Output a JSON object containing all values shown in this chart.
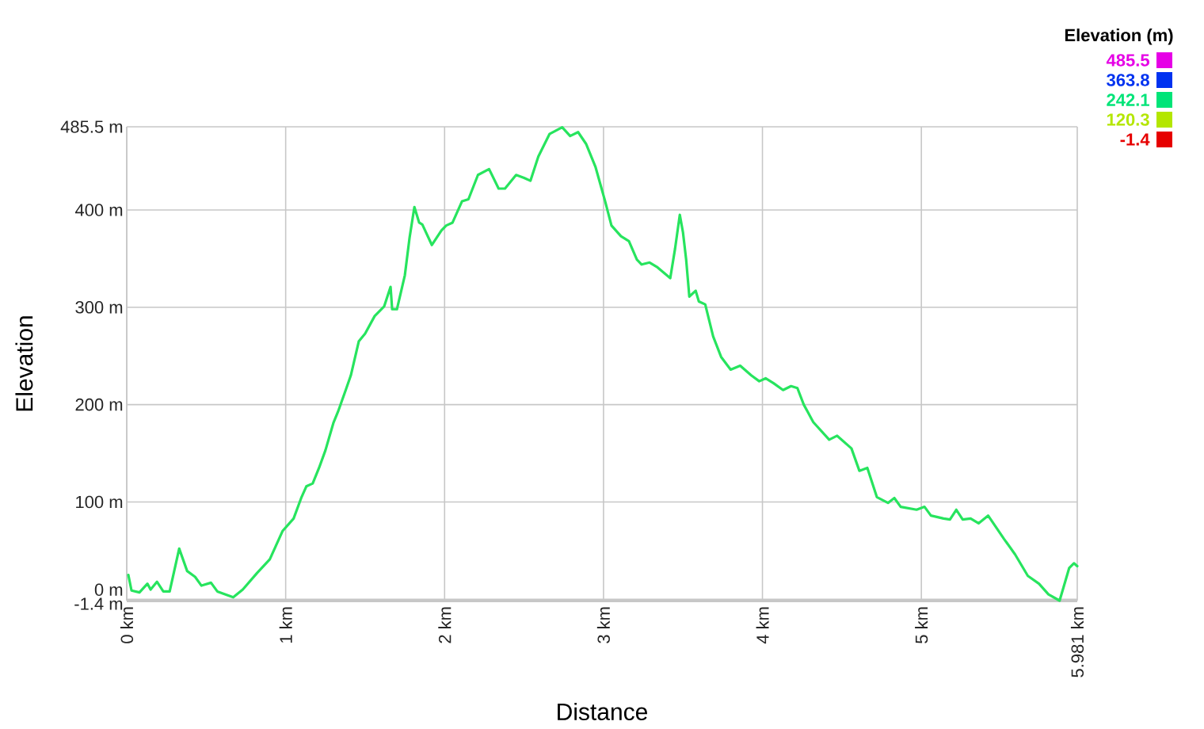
{
  "chart_data": {
    "type": "line",
    "xlabel": "Distance",
    "ylabel": "Elevation",
    "clabel": "Elevation (m)",
    "clim": [
      -1.4,
      485.5
    ],
    "cticks": [
      485.5,
      363.8,
      242.1,
      120.3,
      -1.4
    ],
    "xlim": [
      0,
      5.981
    ],
    "ylim": [
      -1.4,
      485.5
    ],
    "grid": true,
    "xticks": [
      {
        "value": 0,
        "label": "0 km"
      },
      {
        "value": 1,
        "label": "1 km"
      },
      {
        "value": 2,
        "label": "2 km"
      },
      {
        "value": 3,
        "label": "3 km"
      },
      {
        "value": 4,
        "label": "4 km"
      },
      {
        "value": 5,
        "label": "5 km"
      },
      {
        "value": 5.981,
        "label": "5.981 km"
      }
    ],
    "yticks": [
      {
        "value": -1.4,
        "label": "-1.4 m"
      },
      {
        "value": 0,
        "label": "0 m"
      },
      {
        "value": 100,
        "label": "100 m"
      },
      {
        "value": 200,
        "label": "200 m"
      },
      {
        "value": 300,
        "label": "300 m"
      },
      {
        "value": 400,
        "label": "400 m"
      },
      {
        "value": 485.5,
        "label": "485.5 m"
      }
    ],
    "x": [
      0.01,
      0.03,
      0.08,
      0.13,
      0.15,
      0.19,
      0.23,
      0.27,
      0.33,
      0.38,
      0.43,
      0.47,
      0.53,
      0.57,
      0.67,
      0.73,
      0.82,
      0.9,
      0.98,
      1.05,
      1.1,
      1.13,
      1.17,
      1.21,
      1.25,
      1.3,
      1.33,
      1.38,
      1.41,
      1.46,
      1.5,
      1.56,
      1.62,
      1.66,
      1.67,
      1.7,
      1.75,
      1.78,
      1.81,
      1.84,
      1.86,
      1.92,
      1.98,
      2.01,
      2.05,
      2.11,
      2.15,
      2.21,
      2.28,
      2.34,
      2.38,
      2.45,
      2.5,
      2.54,
      2.59,
      2.66,
      2.74,
      2.79,
      2.84,
      2.89,
      2.95,
      3.01,
      3.05,
      3.11,
      3.16,
      3.21,
      3.24,
      3.29,
      3.34,
      3.42,
      3.45,
      3.48,
      3.5,
      3.52,
      3.54,
      3.58,
      3.6,
      3.64,
      3.69,
      3.74,
      3.8,
      3.86,
      3.93,
      3.98,
      4.02,
      4.07,
      4.13,
      4.18,
      4.22,
      4.26,
      4.32,
      4.42,
      4.47,
      4.56,
      4.61,
      4.66,
      4.72,
      4.79,
      4.83,
      4.87,
      4.97,
      5.02,
      5.06,
      5.14,
      5.18,
      5.22,
      5.26,
      5.31,
      5.36,
      5.42,
      5.52,
      5.59,
      5.67,
      5.74,
      5.8,
      5.87,
      5.93,
      5.96,
      5.981
    ],
    "values": [
      25,
      9,
      7,
      16,
      10,
      18,
      8,
      8,
      52,
      29,
      23,
      14,
      17,
      8,
      2,
      10,
      27,
      41,
      70,
      83,
      105,
      116,
      119,
      135,
      153,
      181,
      193,
      216,
      230,
      265,
      273,
      291,
      301,
      321,
      298,
      298,
      333,
      372,
      403,
      387,
      385,
      364,
      379,
      384,
      387,
      409,
      411,
      436,
      442,
      422,
      422,
      436,
      433,
      430,
      455,
      478,
      485,
      476,
      480,
      468,
      444,
      409,
      384,
      373,
      368,
      349,
      344,
      346,
      341,
      330,
      360,
      395,
      377,
      349,
      311,
      317,
      306,
      303,
      270,
      249,
      236,
      240,
      230,
      224,
      227,
      222,
      215,
      219,
      217,
      200,
      182,
      164,
      168,
      155,
      132,
      135,
      105,
      99,
      104,
      95,
      92,
      95,
      86,
      83,
      82,
      92,
      82,
      83,
      78,
      86,
      62,
      46,
      24,
      16,
      5,
      -1.4,
      32,
      37,
      34
    ]
  }
}
